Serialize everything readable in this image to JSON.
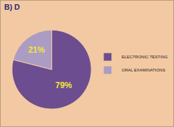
{
  "chart_data": {
    "type": "pie",
    "title": "B) D",
    "categories": [
      "ELECTRONIC TESTING",
      "ORAL EXAMINATIONS"
    ],
    "values": [
      79,
      21
    ],
    "value_labels": [
      "79%",
      "21%"
    ],
    "colors": [
      "#6c4d8f",
      "#ab9cc4"
    ],
    "data_labels": true,
    "legend": "right"
  }
}
